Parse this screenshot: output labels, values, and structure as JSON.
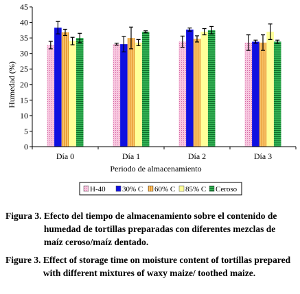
{
  "chart_data": {
    "type": "bar",
    "title": "",
    "xlabel": "Periodo de almacenamiento",
    "ylabel": "Humedad (%)",
    "ylim": [
      0,
      45
    ],
    "yticks": [
      "0",
      "5",
      "10",
      "15",
      "20",
      "25",
      "30",
      "35",
      "40",
      "45"
    ],
    "categories": [
      "Día 0",
      "Día 1",
      "Día 2",
      "Día 3"
    ],
    "legend_position": "bottom",
    "grid": false,
    "series": [
      {
        "name": "H-40",
        "color": "#f4b3d4",
        "pattern": "dots",
        "values": [
          32.7,
          33.0,
          33.8,
          33.5
        ],
        "errors": [
          1.2,
          0.3,
          1.8,
          2.5
        ]
      },
      {
        "name": "30% C",
        "color": "#1010e0",
        "pattern": "solid",
        "values": [
          38.3,
          33.0,
          37.7,
          33.8
        ],
        "errors": [
          2.0,
          2.5,
          0.5,
          0.5
        ]
      },
      {
        "name": "60% C",
        "color": "#f5b24a",
        "pattern": "vlines",
        "values": [
          36.8,
          35.0,
          34.7,
          33.5
        ],
        "errors": [
          1.0,
          3.5,
          1.0,
          2.5
        ]
      },
      {
        "name": "85% C",
        "color": "#ffff99",
        "pattern": "solid",
        "values": [
          34.0,
          33.5,
          37.0,
          37.0
        ],
        "errors": [
          1.2,
          1.0,
          1.0,
          2.5
        ]
      },
      {
        "name": "Ceroso",
        "color": "#2ea44a",
        "pattern": "hlines",
        "values": [
          35.0,
          37.0,
          37.5,
          33.8
        ],
        "errors": [
          1.5,
          0.3,
          1.2,
          0.5
        ]
      }
    ]
  },
  "captions": {
    "es_label": "Figura 3.",
    "es_text": "Efecto del tiempo de almacenamiento sobre el contenido de humedad de tortillas preparadas con diferentes mezclas de maíz ceroso/maíz dentado.",
    "en_label": "Figure 3.",
    "en_text": "Effect of storage time on moisture content of tortillas prepared with different mixtures of waxy maize/ toothed maize."
  }
}
